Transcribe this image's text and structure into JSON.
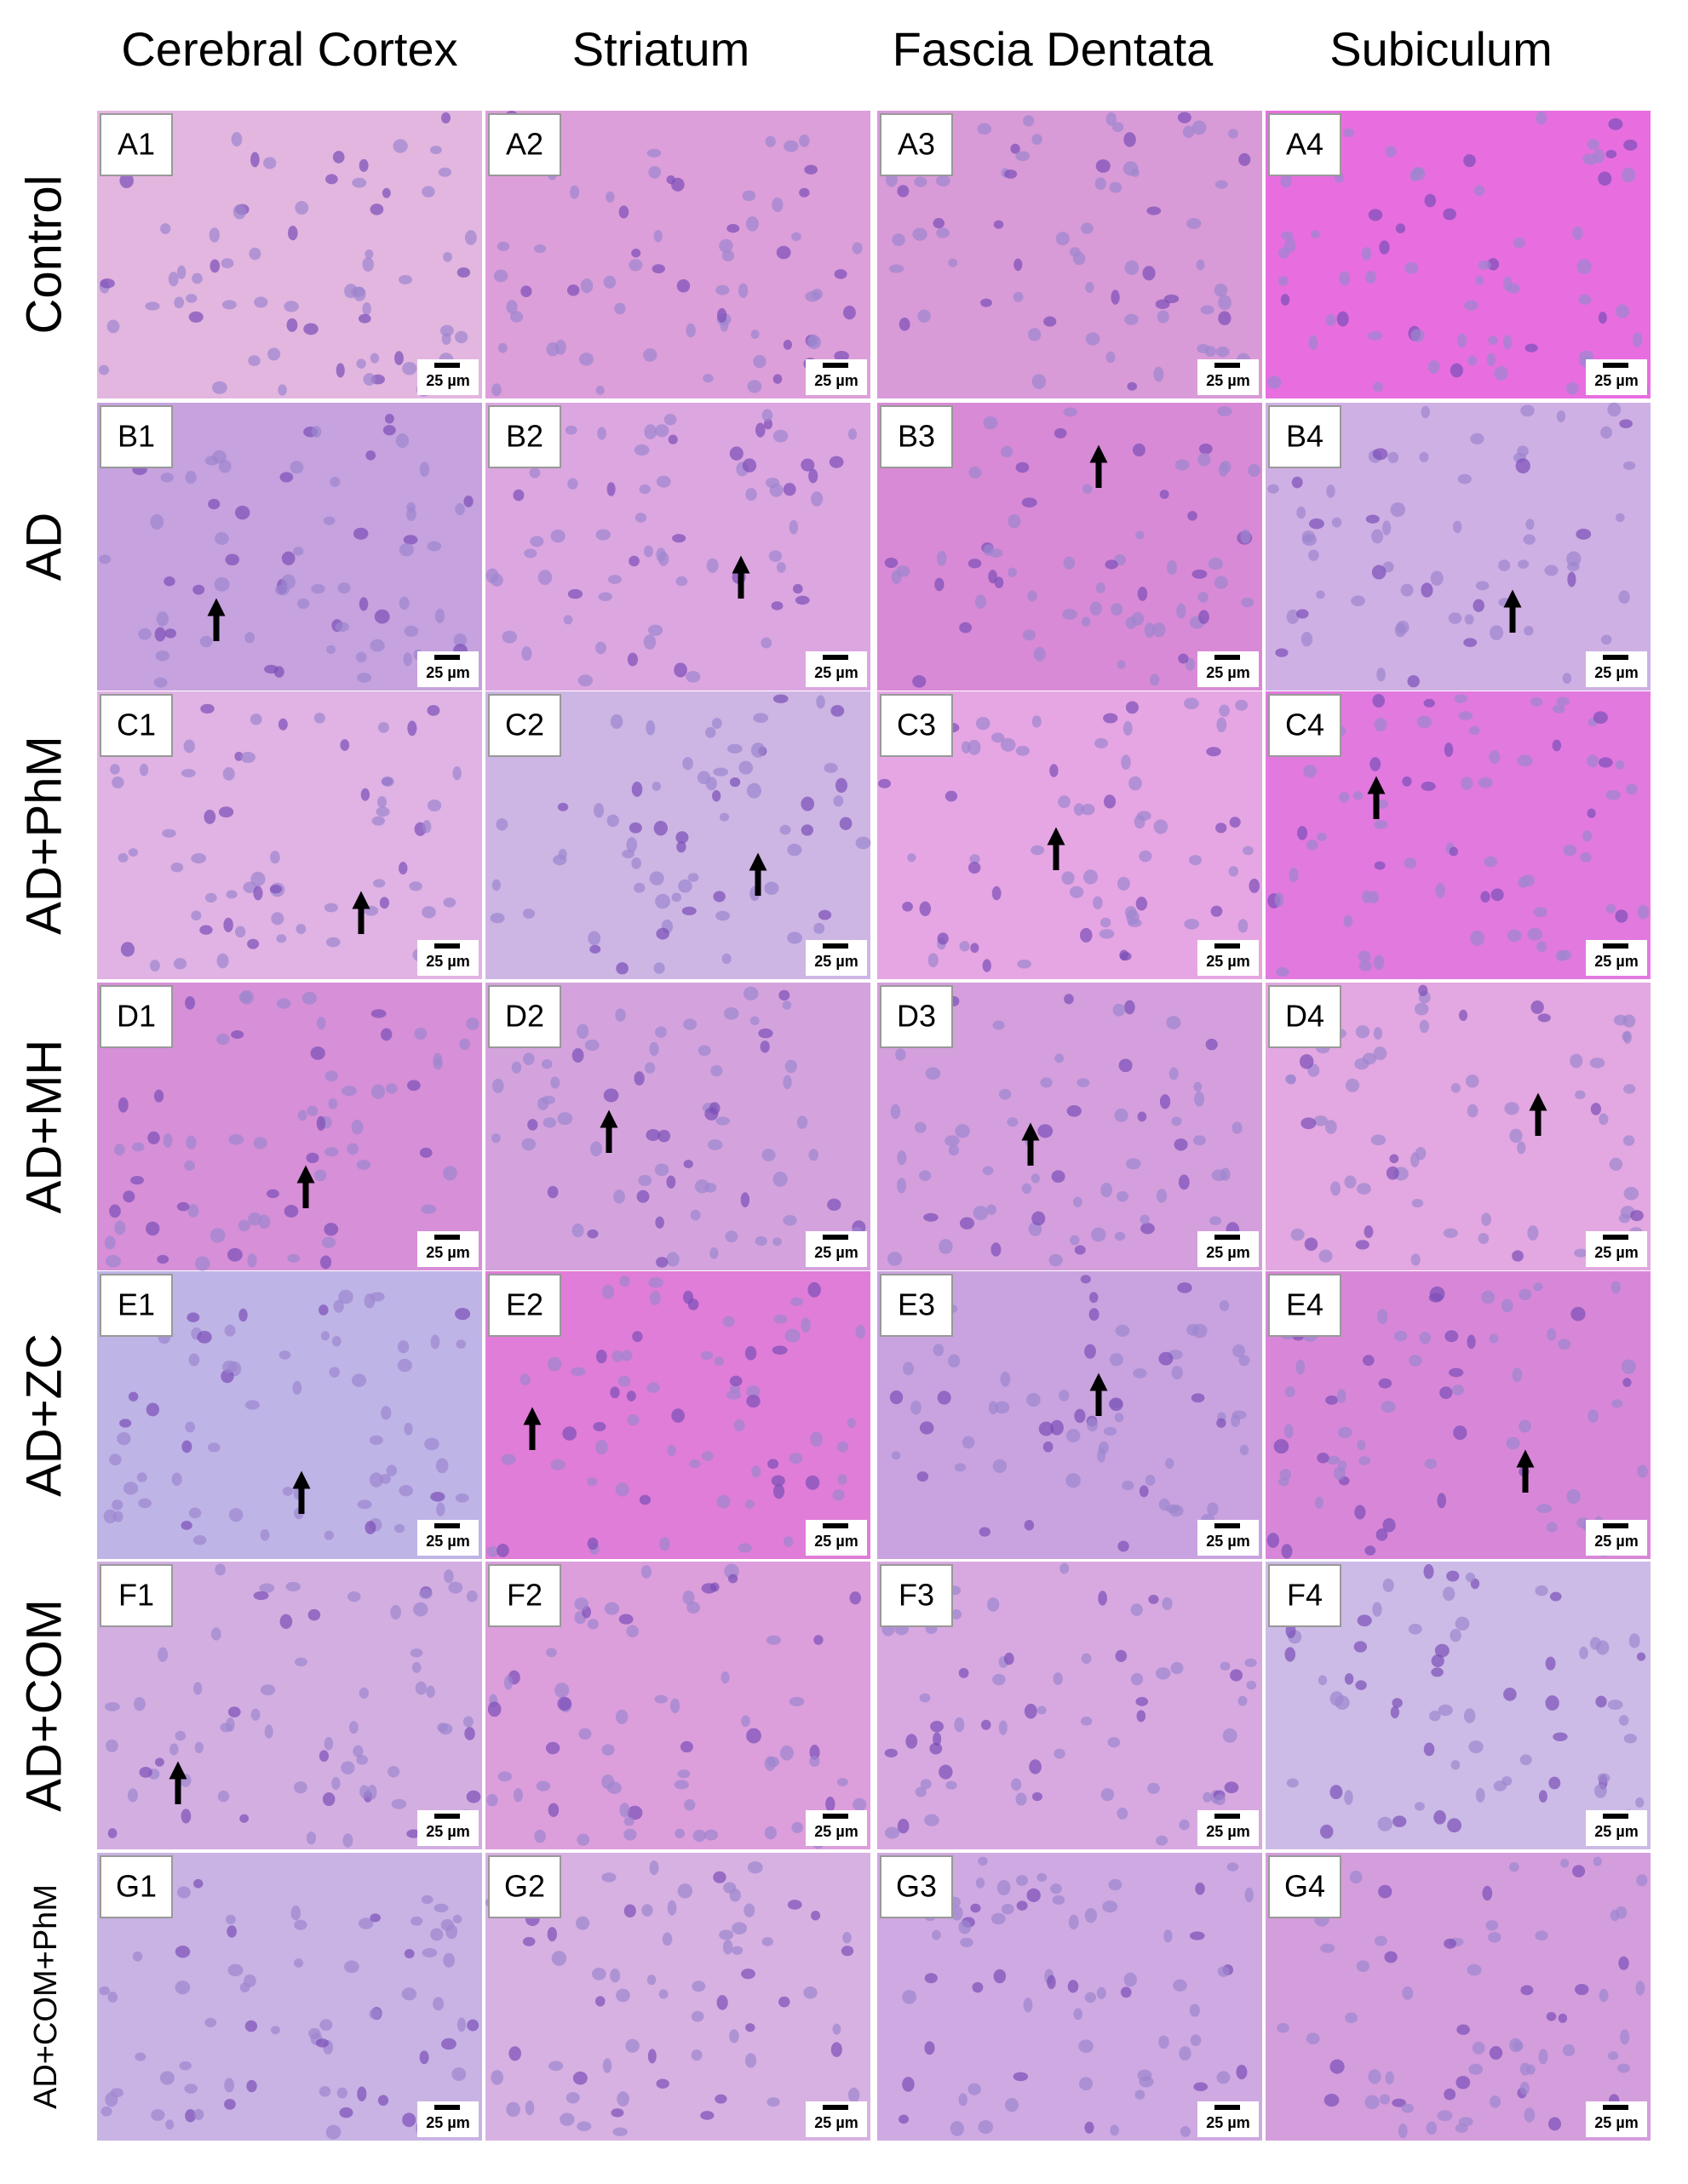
{
  "columns": [
    "Cerebral Cortex",
    "Striatum",
    "Fascia Dentata",
    "Subiculum"
  ],
  "rows": [
    {
      "label": "Control",
      "panels": [
        {
          "label": "A1",
          "scale": "25 µm"
        },
        {
          "label": "A2",
          "scale": "25 µm"
        },
        {
          "label": "A3",
          "scale": "25 µm"
        },
        {
          "label": "A4",
          "scale": "25 µm"
        }
      ]
    },
    {
      "label": "AD",
      "panels": [
        {
          "label": "B1",
          "scale": "25 µm"
        },
        {
          "label": "B2",
          "scale": "25 µm"
        },
        {
          "label": "B3",
          "scale": "25 µm"
        },
        {
          "label": "B4",
          "scale": "25 µm"
        }
      ]
    },
    {
      "label": "AD+PhM",
      "panels": [
        {
          "label": "C1",
          "scale": "25 µm"
        },
        {
          "label": "C2",
          "scale": "25 µm"
        },
        {
          "label": "C3",
          "scale": "25 µm"
        },
        {
          "label": "C4",
          "scale": "25 µm"
        }
      ]
    },
    {
      "label": "AD+MH",
      "panels": [
        {
          "label": "D1",
          "scale": "25 µm"
        },
        {
          "label": "D2",
          "scale": "25 µm"
        },
        {
          "label": "D3",
          "scale": "25 µm"
        },
        {
          "label": "D4",
          "scale": "25 µm"
        }
      ]
    },
    {
      "label": "AD+ZC",
      "panels": [
        {
          "label": "E1",
          "scale": "25 µm"
        },
        {
          "label": "E2",
          "scale": "25 µm"
        },
        {
          "label": "E3",
          "scale": "25 µm"
        },
        {
          "label": "E4",
          "scale": "25 µm"
        }
      ]
    },
    {
      "label": "AD+COM",
      "panels": [
        {
          "label": "F1",
          "scale": "25 µm"
        },
        {
          "label": "F2",
          "scale": "25 µm"
        },
        {
          "label": "F3",
          "scale": "25 µm"
        },
        {
          "label": "F4",
          "scale": "25 µm"
        }
      ]
    },
    {
      "label": "AD+COM+PhM",
      "panels": [
        {
          "label": "G1",
          "scale": "25 µm"
        },
        {
          "label": "G2",
          "scale": "25 µm"
        },
        {
          "label": "G3",
          "scale": "25 µm"
        },
        {
          "label": "G4",
          "scale": "25 µm"
        }
      ]
    }
  ]
}
